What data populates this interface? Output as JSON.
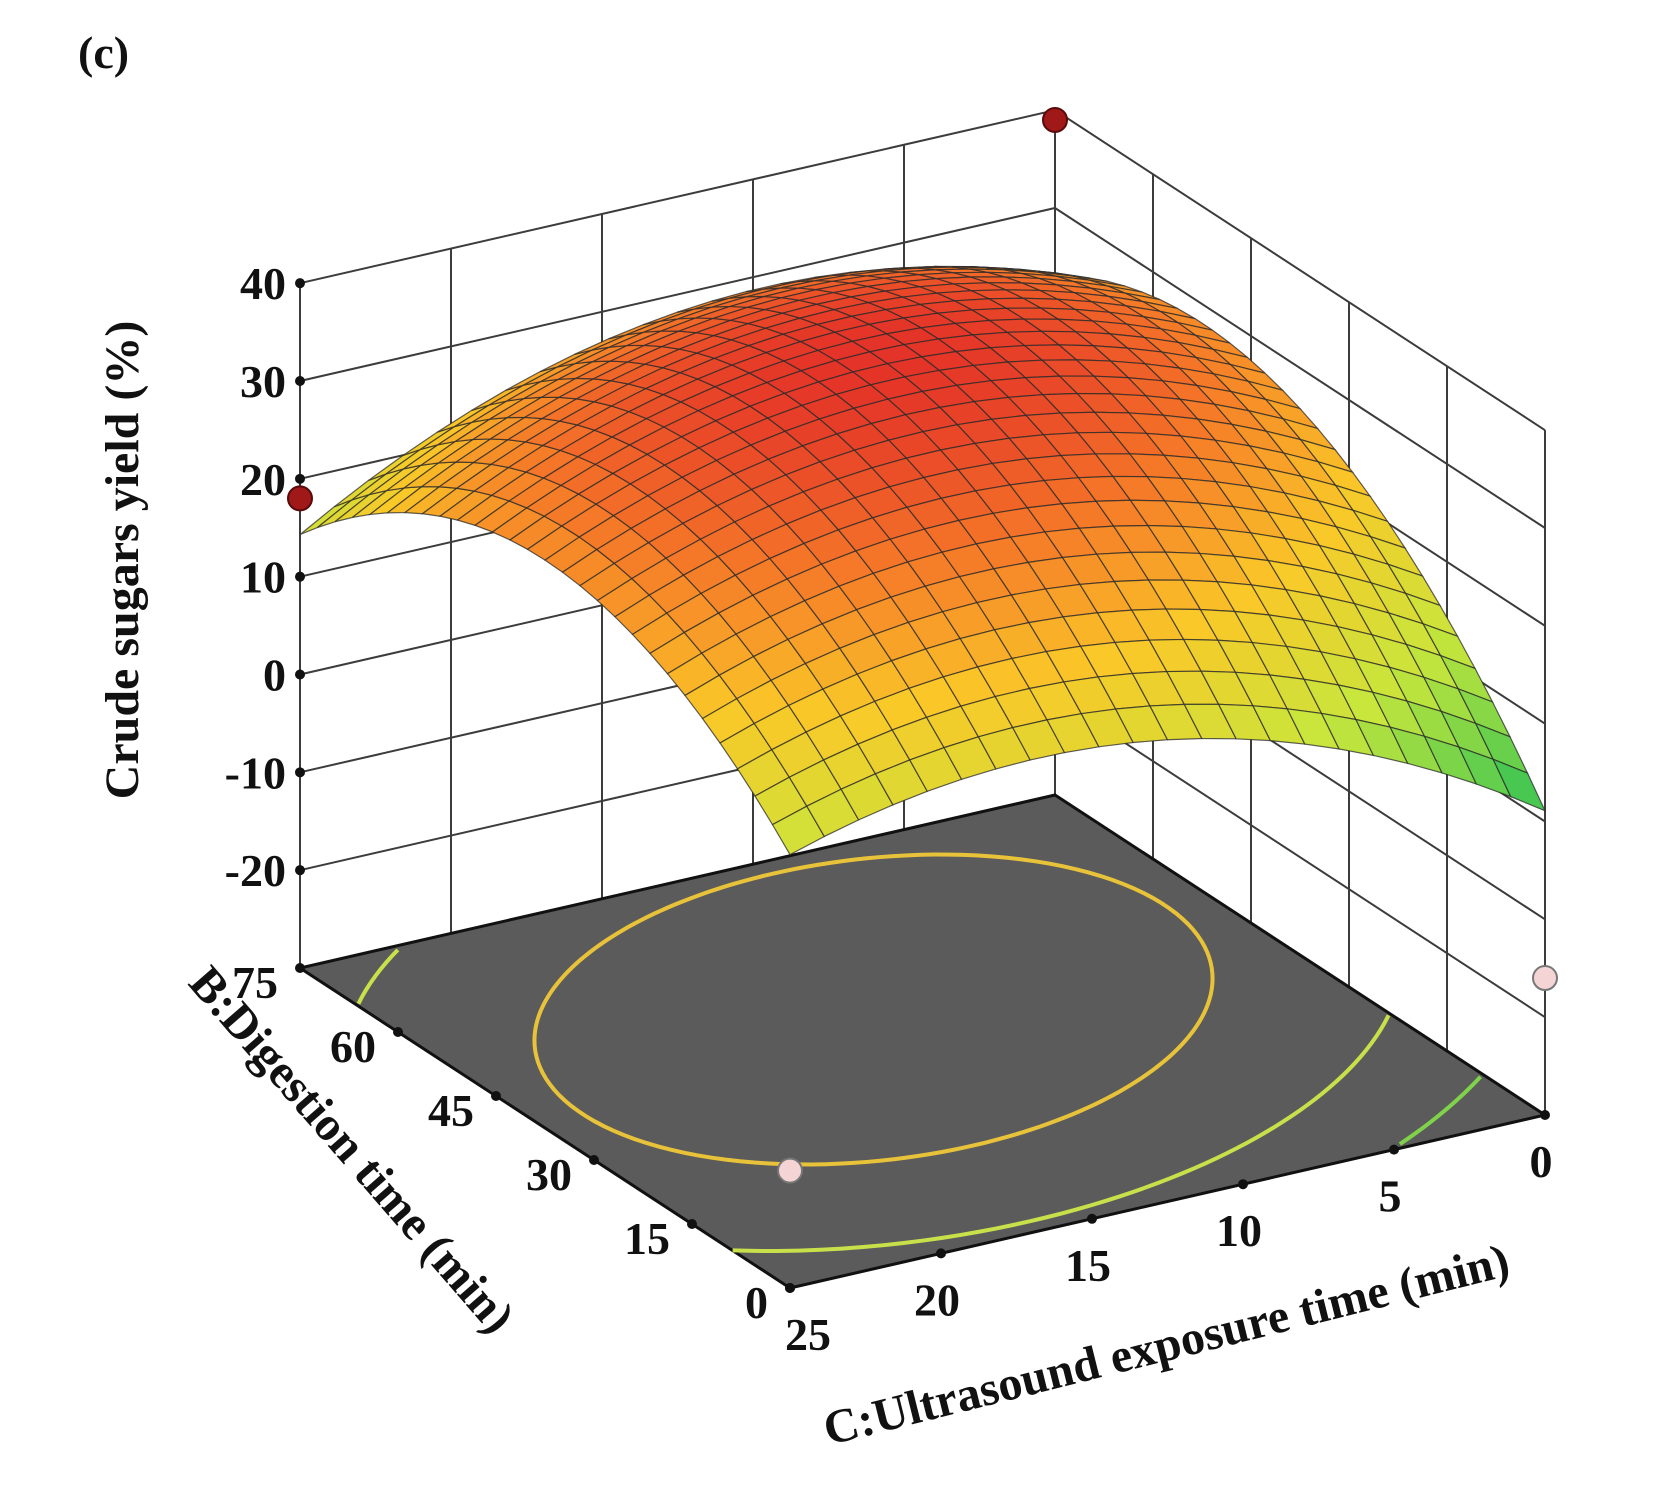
{
  "chart_data": {
    "type": "surface",
    "panel_label": "(c)",
    "zlabel": "Crude sugars yield (%)",
    "xlabel": "B:Digestion time (min)",
    "ylabel": "C:Ultrasound exposure time (min)",
    "zlim": [
      -20,
      40
    ],
    "xlim": [
      0,
      75
    ],
    "ylim": [
      0,
      25
    ],
    "z_ticks": [
      "40",
      "30",
      "20",
      "10",
      "0",
      "-10",
      "-20"
    ],
    "x_ticks": [
      "75",
      "60",
      "45",
      "30",
      "15",
      "0"
    ],
    "y_ticks": [
      "25",
      "20",
      "15",
      "10",
      "5",
      "0"
    ],
    "grid": true,
    "surface_corners": [
      {
        "B": 0,
        "C": 25,
        "yield": -16.5
      },
      {
        "B": 75,
        "C": 25,
        "yield": 14.5
      },
      {
        "B": 75,
        "C": 0,
        "yield": 36.5
      },
      {
        "B": 0,
        "C": 0,
        "yield": -14.5
      }
    ],
    "surface_peak": {
      "B": 45,
      "C": 12.5,
      "yield": 37
    },
    "design_points_above": [
      {
        "B": 75,
        "C": 25,
        "yield": 18
      },
      {
        "B": 75,
        "C": 0,
        "yield": 39
      }
    ],
    "design_points_below": [
      {
        "B": 0,
        "C": 25,
        "yield": -18
      },
      {
        "B": 0,
        "C": 0,
        "yield": -16
      }
    ],
    "floor_contour_colors": [
      "#e8c33a",
      "#c8e04a",
      "#7fd24a",
      "#4cc860",
      "#3fb6c4",
      "#3a7ad8"
    ]
  }
}
